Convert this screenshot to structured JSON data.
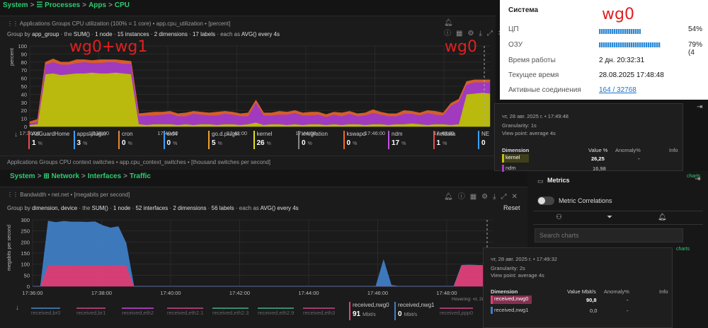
{
  "breadcrumb_top": [
    "System",
    "Processes",
    "Apps",
    "CPU"
  ],
  "breadcrumb_net": [
    "System",
    "Network",
    "Interfaces",
    "Traffic"
  ],
  "chart1": {
    "title": "Applications Groups CPU utilization (100% = 1 core) • app.cpu_utilization • [percent]",
    "controls": {
      "group_by": "Group by",
      "group_val": "app_group",
      "the": "the",
      "agg": "SUM()",
      "nodes": "1 node",
      "instances": "15 instances",
      "dims": "2 dimensions",
      "labels": "17 labels",
      "each": "each as",
      "each_val": "AVG() every 4s"
    },
    "ylabel": "percent",
    "legend": [
      {
        "name": "AdGuardHome",
        "value": "1",
        "unit": "%",
        "color": "#e84d4d"
      },
      {
        "name": "apps.plugin",
        "value": "3",
        "unit": "%",
        "color": "#3aa0ff"
      },
      {
        "name": "cron",
        "value": "0",
        "unit": "%",
        "color": "#e0883a"
      },
      {
        "name": "ext4",
        "value": "0",
        "unit": "%",
        "color": "#3aa0ff"
      },
      {
        "name": "go.d.plugin",
        "value": "5",
        "unit": "%",
        "color": "#f0a030"
      },
      {
        "name": "kernel",
        "value": "26",
        "unit": "%",
        "color": "#e0e020"
      },
      {
        "name": "kmigration",
        "value": "0",
        "unit": "%",
        "color": "#888888"
      },
      {
        "name": "kswapd",
        "value": "0",
        "unit": "%",
        "color": "#f06a20"
      },
      {
        "name": "ndm",
        "value": "17",
        "unit": "%",
        "color": "#c050e0"
      },
      {
        "name": "netdata",
        "value": "1",
        "unit": "%",
        "color": "#e84d4d"
      },
      {
        "name": "NE",
        "value": "0",
        "unit": "",
        "color": "#3aa0ff"
      }
    ]
  },
  "chart_data": [
    {
      "type": "area",
      "x_ticks": [
        "17:36:00",
        "17:38:00",
        "17:40:00",
        "17:42:00",
        "17:44:00",
        "17:46:00",
        "17:48:00"
      ],
      "ylim": [
        0,
        100
      ],
      "y_ticks": [
        0,
        10,
        20,
        30,
        40,
        50,
        60,
        70,
        80,
        90,
        100
      ],
      "ylabel": "percent",
      "series": [
        {
          "name": "kernel",
          "color": "#c2c20e",
          "values": [
            2,
            3,
            65,
            66,
            64,
            65,
            66,
            66,
            67,
            66,
            66,
            67,
            66,
            65,
            3,
            2,
            3,
            3,
            3,
            2,
            3,
            2,
            3,
            3,
            2,
            3,
            3,
            2,
            3,
            5,
            2,
            3,
            3,
            2,
            3,
            2,
            3,
            3,
            2,
            3,
            2,
            3,
            3,
            2,
            3,
            3,
            2,
            3,
            3,
            4,
            3,
            2,
            3,
            3,
            2,
            3,
            40,
            41,
            42,
            41
          ]
        },
        {
          "name": "ndm",
          "color": "#a83cc8",
          "values": [
            2,
            3,
            12,
            14,
            13,
            12,
            13,
            14,
            12,
            13,
            14,
            13,
            12,
            13,
            10,
            12,
            11,
            12,
            13,
            11,
            10,
            14,
            12,
            11,
            12,
            13,
            12,
            11,
            10,
            25,
            12,
            11,
            12,
            13,
            14,
            12,
            11,
            12,
            10,
            12,
            11,
            13,
            10,
            12,
            14,
            12,
            11,
            10,
            13,
            12,
            11,
            15,
            12,
            11,
            24,
            28,
            12,
            14,
            13,
            14
          ]
        },
        {
          "name": "go.d.plugin",
          "color": "#e0622a",
          "values": [
            2,
            3,
            3,
            4,
            3,
            3,
            4,
            3,
            3,
            4,
            3,
            3,
            4,
            3,
            3,
            3,
            4,
            3,
            3,
            3,
            4,
            3,
            3,
            3,
            4,
            3,
            3,
            3,
            4,
            3,
            3,
            3,
            4,
            3,
            3,
            3,
            4,
            3,
            3,
            3,
            4,
            3,
            3,
            3,
            4,
            3,
            3,
            3,
            4,
            3,
            3,
            3,
            4,
            3,
            3,
            3,
            4,
            3,
            3,
            3
          ]
        }
      ]
    },
    {
      "type": "area",
      "x_ticks": [
        "17:36:00",
        "17:38:00",
        "17:40:00",
        "17:42:00",
        "17:44:00",
        "17:46:00",
        "17:48:00"
      ],
      "ylim": [
        0,
        300
      ],
      "y_ticks": [
        0,
        50,
        100,
        150,
        200,
        250,
        300
      ],
      "ylabel": "megabits per second",
      "series": [
        {
          "name": "received,nwg0",
          "color": "#e0407a",
          "values": [
            0,
            0,
            95,
            94,
            96,
            95,
            94,
            95,
            96,
            95,
            94,
            95,
            95,
            0,
            0,
            0,
            0,
            0,
            0,
            0,
            0,
            0,
            0,
            0,
            0,
            0,
            0,
            0,
            0,
            0,
            0,
            0,
            0,
            0,
            0,
            0,
            0,
            0,
            0,
            0,
            0,
            0,
            0,
            0,
            0,
            0,
            0,
            0,
            0,
            0,
            0,
            0,
            0,
            0,
            0,
            95,
            96,
            95,
            94,
            95
          ]
        },
        {
          "name": "received,nwg1",
          "color": "#3f7ec4",
          "values": [
            0,
            0,
            200,
            195,
            198,
            196,
            197,
            195,
            196,
            180,
            170,
            175,
            100,
            0,
            0,
            0,
            0,
            0,
            0,
            0,
            0,
            0,
            0,
            0,
            0,
            0,
            0,
            0,
            0,
            0,
            0,
            0,
            0,
            0,
            0,
            0,
            0,
            0,
            0,
            0,
            0,
            0,
            0,
            0,
            0,
            120,
            5,
            0,
            0,
            0,
            0,
            0,
            0,
            0,
            0,
            0,
            0,
            0,
            0,
            0
          ]
        }
      ]
    }
  ],
  "chart2": {
    "title": "Applications Groups CPU context switches • app.cpu_context_switches • [thousand switches per second]"
  },
  "chart3": {
    "title": "Bandwidth • net.net • [megabits per second]",
    "controls": {
      "group_by": "Group by",
      "group_val": "dimension, device",
      "the": "the",
      "agg": "SUM()",
      "nodes": "1 node",
      "interfaces": "52 interfaces",
      "dims": "2 dimensions",
      "labels": "56 labels",
      "each": "each as",
      "each_val": "AVG() every 4s"
    },
    "reset": "Reset",
    "ylabel": "megabits per second",
    "hovering": "Hovering: чт, 28 авг. 20...",
    "dims": [
      {
        "name": "received,br0",
        "color": "#3a6ea0"
      },
      {
        "name": "received,br1",
        "color": "#a03a6e"
      },
      {
        "name": "received,eth2",
        "color": "#a03ab0"
      },
      {
        "name": "received,eth2.1",
        "color": "#a03a6e"
      },
      {
        "name": "received,eth2.3",
        "color": "#3a8a6e"
      },
      {
        "name": "received,eth2.9",
        "color": "#3a8a6e"
      },
      {
        "name": "received,eth3",
        "color": "#a03a6e"
      }
    ],
    "legend": [
      {
        "name": "received,nwg0",
        "value": "91",
        "unit": "Mbit/s",
        "color": "#e0407a"
      },
      {
        "name": "received,nwg1",
        "value": "0",
        "unit": "Mbit/s",
        "color": "#3f7ec4"
      }
    ],
    "dim_after": "received,ppp0"
  },
  "tooltip1": {
    "date": "чт, 28 авг. 2025 г. • 17:49:48",
    "granularity": "Granularity: 1s",
    "viewpoint": "View point: average 4s",
    "hovering": "Hovering: чт, 28 авг. 2025",
    "headers": [
      "Dimension",
      "Value %",
      "Anomaly%",
      "Info"
    ],
    "rows": [
      {
        "name": "kernel",
        "value": "26,25",
        "anomaly": "-",
        "color": "#c2c20e"
      },
      {
        "name": "ndm",
        "value": "16,98",
        "anomaly": "-",
        "color": "#a83cc8"
      }
    ]
  },
  "tooltip2": {
    "date": "чт, 28 авг. 2025 г. • 17:49:32",
    "granularity": "Granularity: 2s",
    "viewpoint": "View point: average 4s",
    "headers": [
      "Dimension",
      "Value Mbit/s",
      "Anomaly%",
      "Info"
    ],
    "rows": [
      {
        "name": "received,nwg0",
        "value": "90,8",
        "anomaly": "-",
        "color": "#e0407a"
      },
      {
        "name": "received,nwg1",
        "value": "0,0",
        "anomaly": "-",
        "color": "#3f7ec4"
      }
    ]
  },
  "system": {
    "title": "Система",
    "cpu_label": "ЦП",
    "cpu_value": "54%",
    "cpu_pct": 54,
    "ram_label": "ОЗУ",
    "ram_value": "79% (4",
    "ram_pct": 79,
    "uptime_label": "Время работы",
    "uptime_value": "2 дн. 20:32:31",
    "time_label": "Текущее время",
    "time_value": "28.08.2025 17:48:48",
    "conn_label": "Активные соединения",
    "conn_value": "164 / 32768"
  },
  "metrics": {
    "title": "Metrics",
    "correlations": "Metric Correlations",
    "search_placeholder": "Search charts",
    "side_link": "charts"
  },
  "annotations": {
    "top_left": "wg0+wg1",
    "top_right": "wg0",
    "system": "wg0"
  },
  "colors": {
    "green": "#2ecc71",
    "annotation": "#e02020"
  }
}
